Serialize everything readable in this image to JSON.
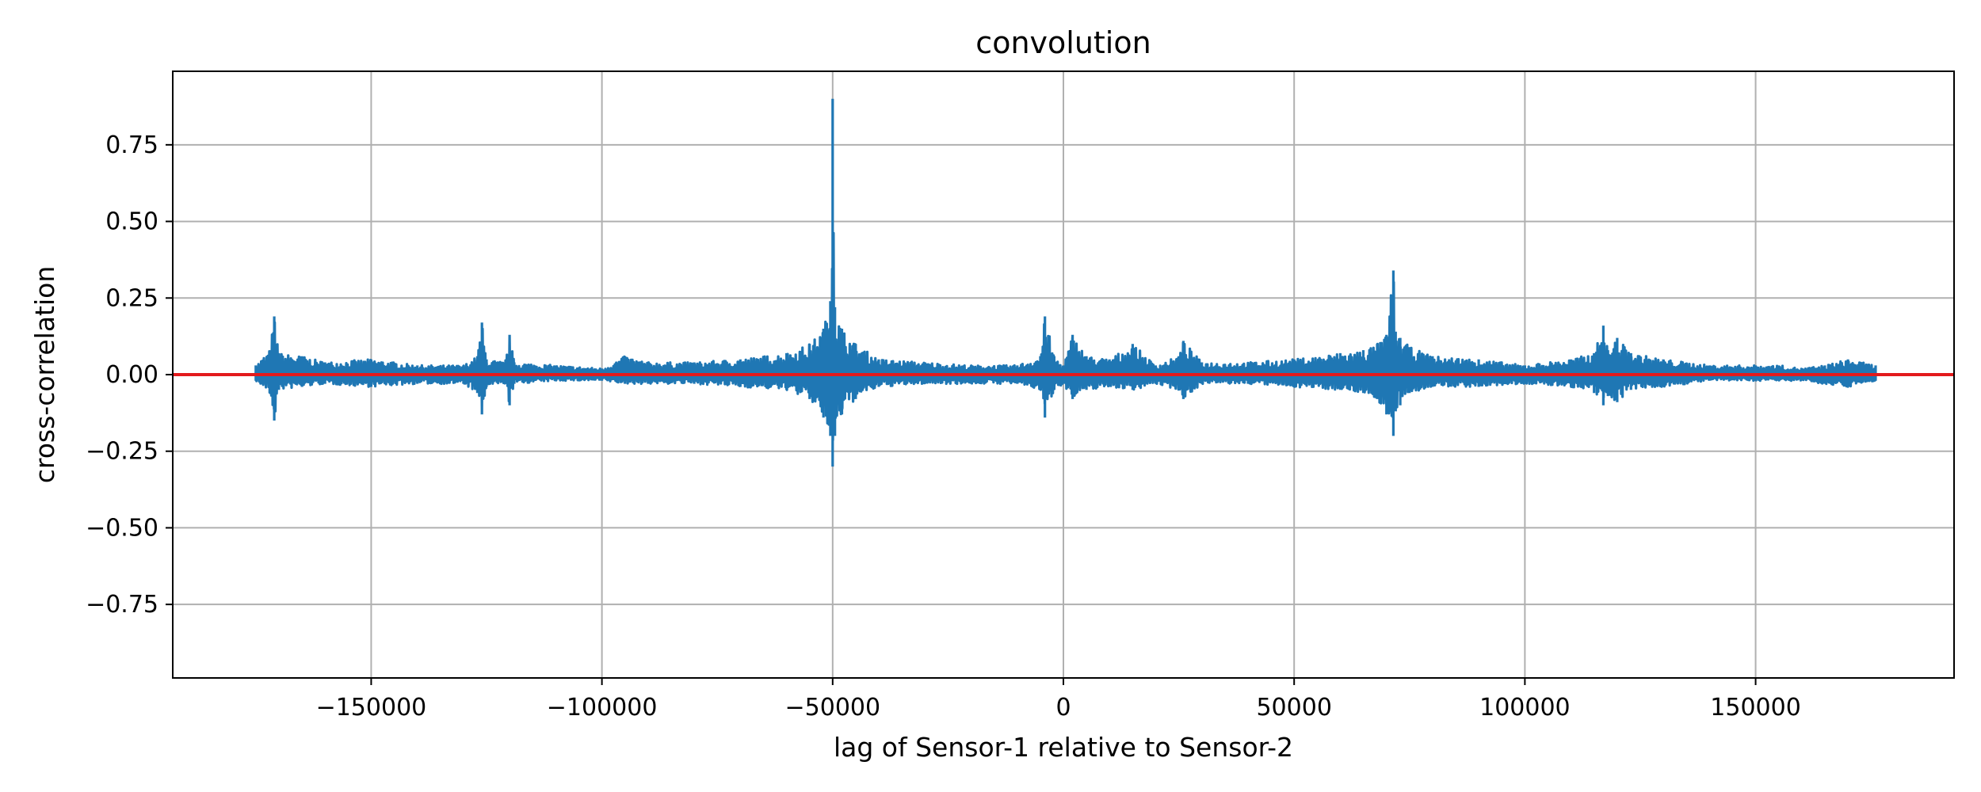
{
  "chart_data": {
    "type": "line",
    "title": "convolution",
    "xlabel": "lag of Sensor-1 relative to Sensor-2",
    "ylabel": "cross-correlation",
    "xlim": [
      -193000,
      193000
    ],
    "ylim": [
      -0.99,
      0.99
    ],
    "grid": true,
    "xticks": [
      -150000,
      -100000,
      -50000,
      0,
      50000,
      100000,
      150000
    ],
    "xtick_labels": [
      "−150000",
      "−100000",
      "−50000",
      "0",
      "50000",
      "100000",
      "150000"
    ],
    "yticks": [
      0.75,
      0.5,
      0.25,
      0.0,
      -0.25,
      -0.5,
      -0.75
    ],
    "ytick_labels": [
      "0.75",
      "0.50",
      "0.25",
      "0.00",
      "−0.25",
      "−0.50",
      "−0.75"
    ],
    "series": [
      {
        "color": "#1f77b4",
        "envelope": {
          "x": [
            -175000,
            -172000,
            -171000,
            -170000,
            -165000,
            -160000,
            -150000,
            -140000,
            -130000,
            -127000,
            -126000,
            -125000,
            -121000,
            -120000,
            -119000,
            -110000,
            -100000,
            -95000,
            -90000,
            -80000,
            -70000,
            -60000,
            -55000,
            -52000,
            -50500,
            -50000,
            -49500,
            -48000,
            -45000,
            -40000,
            -30000,
            -20000,
            -10000,
            -5000,
            -4000,
            -2000,
            0,
            2000,
            5000,
            10000,
            15000,
            20000,
            25000,
            26000,
            30000,
            40000,
            50000,
            60000,
            65000,
            68000,
            70000,
            71500,
            72000,
            73000,
            75000,
            80000,
            90000,
            100000,
            110000,
            115000,
            117000,
            118000,
            120000,
            123000,
            130000,
            140000,
            150000,
            155000,
            160000,
            165000,
            170000,
            176000
          ],
          "upper": [
            0.03,
            0.08,
            0.19,
            0.07,
            0.06,
            0.04,
            0.05,
            0.03,
            0.03,
            0.06,
            0.17,
            0.05,
            0.04,
            0.13,
            0.04,
            0.03,
            0.02,
            0.06,
            0.04,
            0.04,
            0.05,
            0.07,
            0.1,
            0.15,
            0.24,
            0.9,
            0.22,
            0.15,
            0.1,
            0.05,
            0.04,
            0.03,
            0.03,
            0.06,
            0.19,
            0.06,
            0.03,
            0.13,
            0.06,
            0.05,
            0.1,
            0.03,
            0.06,
            0.11,
            0.04,
            0.04,
            0.05,
            0.07,
            0.08,
            0.1,
            0.13,
            0.34,
            0.14,
            0.12,
            0.09,
            0.06,
            0.05,
            0.03,
            0.05,
            0.07,
            0.16,
            0.08,
            0.12,
            0.07,
            0.05,
            0.03,
            0.03,
            0.03,
            0.02,
            0.03,
            0.05,
            0.03
          ],
          "lower": [
            -0.02,
            -0.06,
            -0.15,
            -0.05,
            -0.04,
            -0.03,
            -0.04,
            -0.03,
            -0.03,
            -0.06,
            -0.13,
            -0.04,
            -0.03,
            -0.1,
            -0.03,
            -0.02,
            -0.02,
            -0.03,
            -0.03,
            -0.03,
            -0.04,
            -0.05,
            -0.08,
            -0.14,
            -0.2,
            -0.3,
            -0.2,
            -0.13,
            -0.08,
            -0.04,
            -0.03,
            -0.03,
            -0.03,
            -0.05,
            -0.14,
            -0.05,
            -0.03,
            -0.08,
            -0.05,
            -0.04,
            -0.05,
            -0.03,
            -0.05,
            -0.08,
            -0.03,
            -0.03,
            -0.04,
            -0.05,
            -0.06,
            -0.08,
            -0.13,
            -0.2,
            -0.12,
            -0.1,
            -0.06,
            -0.04,
            -0.04,
            -0.03,
            -0.04,
            -0.06,
            -0.1,
            -0.07,
            -0.09,
            -0.05,
            -0.04,
            -0.02,
            -0.02,
            -0.02,
            -0.02,
            -0.03,
            -0.04,
            -0.02
          ]
        }
      }
    ],
    "reference_line": {
      "y": 0.0,
      "color": "#e31a1c"
    }
  }
}
